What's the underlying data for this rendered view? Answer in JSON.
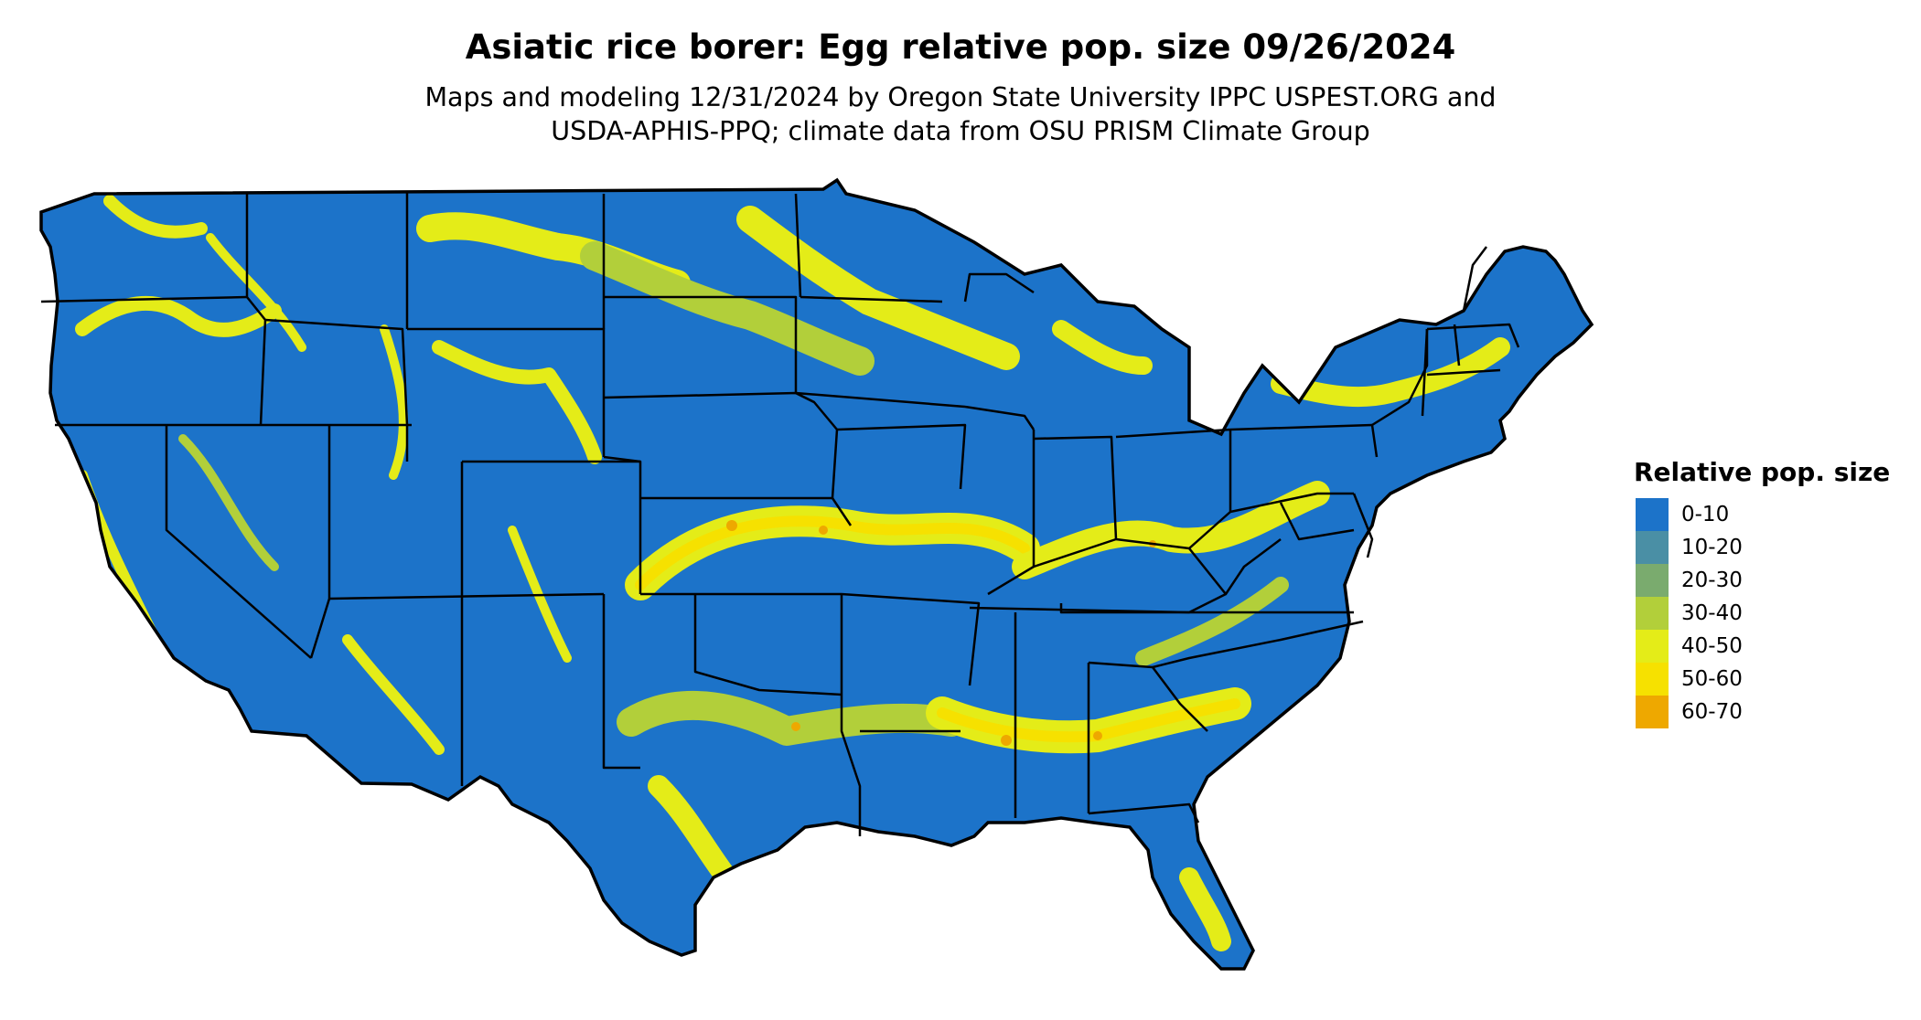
{
  "map": {
    "title": "Asiatic rice borer: Egg relative pop. size 09/26/2024",
    "subtitle_line1": "Maps and modeling 12/31/2024 by Oregon State University IPPC USPEST.ORG and",
    "subtitle_line2": "USDA-APHIS-PPQ; climate data from OSU PRISM Climate Group",
    "region": "Contiguous United States",
    "legend": {
      "title": "Relative pop. size",
      "items": [
        {
          "label": "0-10",
          "color": "#1c73c9"
        },
        {
          "label": "10-20",
          "color": "#4a8fa5"
        },
        {
          "label": "20-30",
          "color": "#7aab6e"
        },
        {
          "label": "30-40",
          "color": "#b2cf3a"
        },
        {
          "label": "40-50",
          "color": "#e4ec18"
        },
        {
          "label": "50-60",
          "color": "#f6e100"
        },
        {
          "label": "60-70",
          "color": "#eea800"
        }
      ]
    }
  }
}
